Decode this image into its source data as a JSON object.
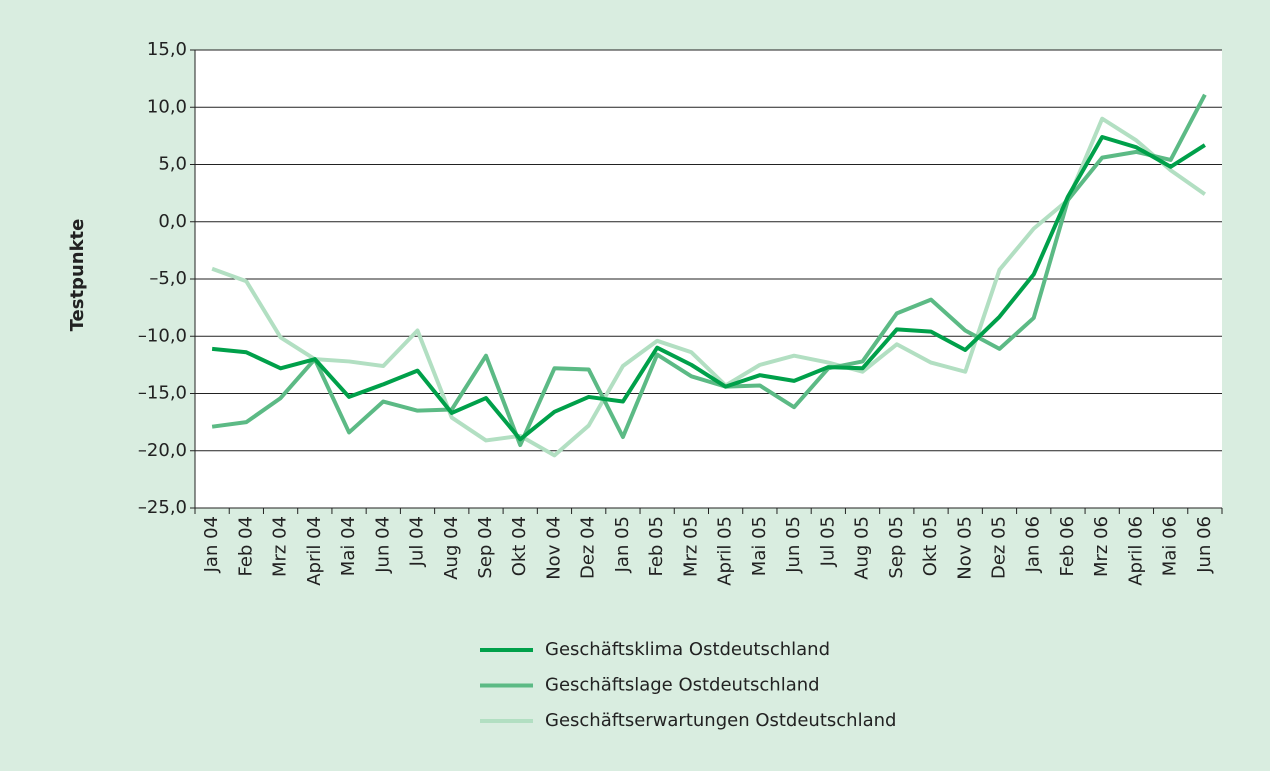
{
  "chart_data": {
    "type": "line",
    "y_label": "Testpunkte",
    "categories": [
      "Jan 04",
      "Feb 04",
      "Mrz 04",
      "April 04",
      "Mai 04",
      "Jun 04",
      "Jul 04",
      "Aug 04",
      "Sep 04",
      "Okt 04",
      "Nov 04",
      "Dez 04",
      "Jan 05",
      "Feb 05",
      "Mrz 05",
      "April 05",
      "Mai 05",
      "Jun 05",
      "Jul 05",
      "Aug 05",
      "Sep 05",
      "Okt 05",
      "Nov 05",
      "Dez 05",
      "Jan 06",
      "Feb 06",
      "Mrz 06",
      "April 06",
      "Mai 06",
      "Jun 06"
    ],
    "series": [
      {
        "name": "Geschäftsklima Ostdeutschland",
        "color": "#00a04a",
        "values": [
          -11.1,
          -11.4,
          -12.8,
          -12.0,
          -15.3,
          -14.2,
          -13.0,
          -16.7,
          -15.4,
          -19.0,
          -16.6,
          -15.3,
          -15.7,
          -11.0,
          -12.5,
          -14.4,
          -13.4,
          -13.9,
          -12.7,
          -12.8,
          -9.4,
          -9.6,
          -11.2,
          -8.3,
          -4.6,
          2.2,
          7.4,
          6.5,
          4.8,
          6.7
        ]
      },
      {
        "name": "Geschäftslage Ostdeutschland",
        "color": "#5cba85",
        "values": [
          -17.9,
          -17.5,
          -15.4,
          -12.0,
          -18.4,
          -15.7,
          -16.5,
          -16.4,
          -11.7,
          -19.5,
          -12.8,
          -12.9,
          -18.8,
          -11.6,
          -13.5,
          -14.4,
          -14.3,
          -16.2,
          -12.8,
          -12.2,
          -8.0,
          -6.8,
          -9.5,
          -11.1,
          -8.4,
          1.9,
          5.6,
          6.1,
          5.4,
          11.1
        ]
      },
      {
        "name": "Geschäftserwartungen Ostdeutschland",
        "color": "#b2dfc2",
        "values": [
          -4.1,
          -5.2,
          -10.1,
          -12.0,
          -12.2,
          -12.6,
          -9.5,
          -17.1,
          -19.1,
          -18.7,
          -20.4,
          -17.8,
          -12.6,
          -10.4,
          -11.4,
          -14.3,
          -12.5,
          -11.7,
          -12.3,
          -13.1,
          -10.7,
          -12.3,
          -13.1,
          -4.2,
          -0.6,
          1.9,
          9.0,
          7.1,
          4.5,
          2.4
        ]
      }
    ],
    "ylim": [
      -25,
      15
    ],
    "yticks": [
      {
        "value": -25,
        "label": "–25,0"
      },
      {
        "value": -20,
        "label": "–20,0"
      },
      {
        "value": -15,
        "label": "–15,0"
      },
      {
        "value": -10,
        "label": "–10,0"
      },
      {
        "value": -5,
        "label": "–5,0"
      },
      {
        "value": 0,
        "label": "0,0"
      },
      {
        "value": 5,
        "label": "5,0"
      },
      {
        "value": 10,
        "label": "10,0"
      },
      {
        "value": 15,
        "label": "15,0"
      }
    ],
    "grid": true
  }
}
